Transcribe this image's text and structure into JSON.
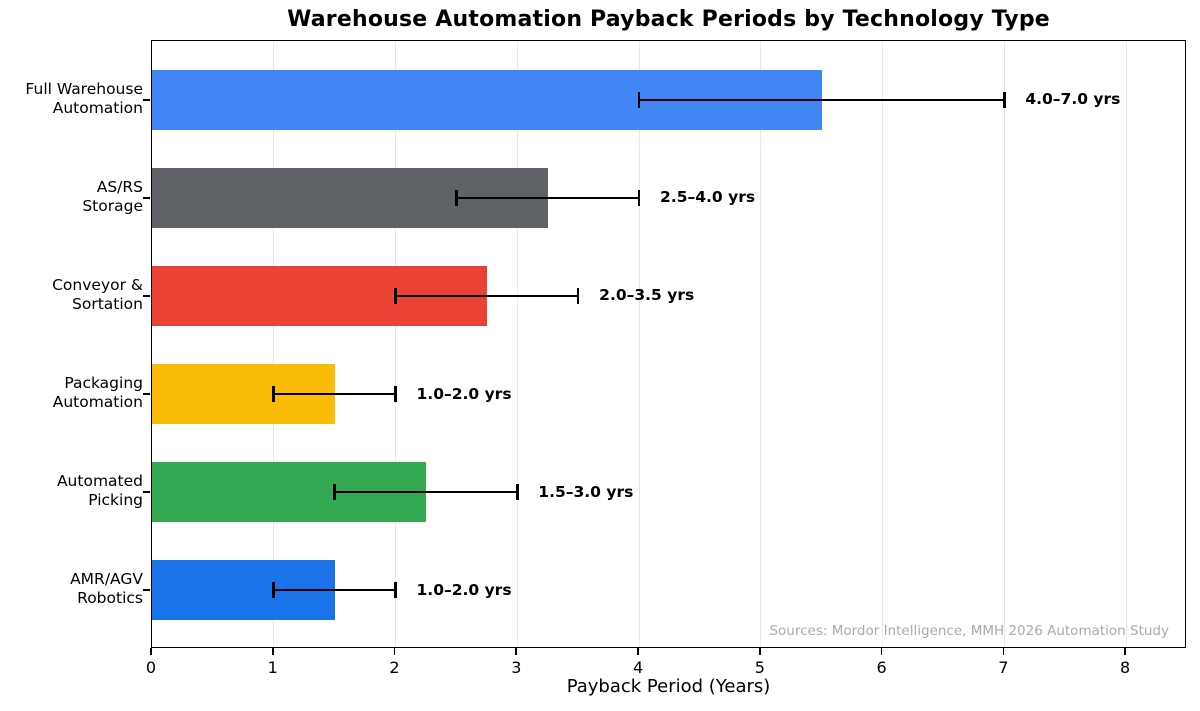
{
  "chart_data": {
    "type": "bar",
    "orientation": "horizontal",
    "title": "Warehouse Automation Payback Periods by Technology Type",
    "xlabel": "Payback Period (Years)",
    "xlim": [
      0,
      8.5
    ],
    "xticks": [
      0,
      1,
      2,
      3,
      4,
      5,
      6,
      7,
      8
    ],
    "grid": "vertical",
    "legend": "none",
    "source_note": "Sources: Mordor Intelligence, MMH 2026 Automation Study",
    "categories": [
      [
        "Full Warehouse",
        "Automation"
      ],
      [
        "AS/RS",
        "Storage"
      ],
      [
        "Conveyor &",
        "Sortation"
      ],
      [
        "Packaging",
        "Automation"
      ],
      [
        "Automated",
        "Picking"
      ],
      [
        "AMR/AGV",
        "Robotics"
      ]
    ],
    "values": [
      5.5,
      3.25,
      2.75,
      1.5,
      2.25,
      1.5
    ],
    "error_low": [
      4.0,
      2.5,
      2.0,
      1.0,
      1.5,
      1.0
    ],
    "error_high": [
      7.0,
      4.0,
      3.5,
      2.0,
      3.0,
      2.0
    ],
    "bar_labels": [
      "4.0–7.0 yrs",
      "2.5–4.0 yrs",
      "2.0–3.5 yrs",
      "1.0–2.0 yrs",
      "1.5–3.0 yrs",
      "1.0–2.0 yrs"
    ],
    "bar_colors": [
      "#4285F4",
      "#5F6368",
      "#EA4335",
      "#FBBC05",
      "#34A853",
      "#1A73E8"
    ]
  }
}
